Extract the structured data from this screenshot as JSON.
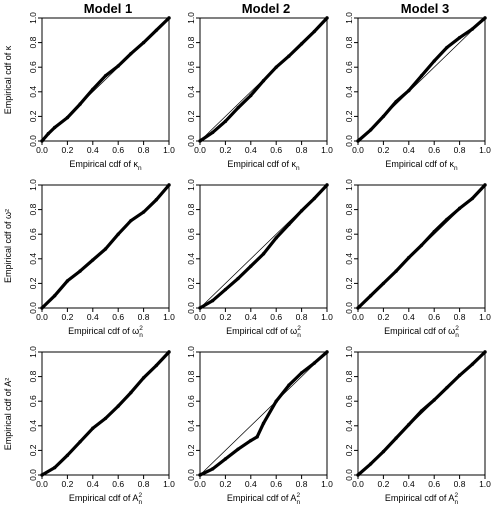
{
  "columns": [
    {
      "title": "Model 1"
    },
    {
      "title": "Model 2"
    },
    {
      "title": "Model 3"
    }
  ],
  "rows": [
    {
      "ylabel": "Empirical cdf of κ",
      "xlabel": "Empirical cdf of κ",
      "xlabel_sub": "n",
      "xlabel_sup": ""
    },
    {
      "ylabel": "Empirical cdf of ω²",
      "xlabel": "Empirical cdf of ω",
      "xlabel_sub": "n",
      "xlabel_sup": "2"
    },
    {
      "ylabel": "Empirical cdf of A²",
      "xlabel": "Empirical cdf of A",
      "xlabel_sub": "n",
      "xlabel_sup": "2"
    }
  ],
  "chart_data": [
    {
      "type": "line",
      "panel": "row1-model1",
      "xlim": [
        0,
        1
      ],
      "ylim": [
        0,
        1
      ],
      "reference_line": "y=x",
      "series": [
        {
          "x": [
            0,
            0.05,
            0.1,
            0.2,
            0.3,
            0.4,
            0.5,
            0.6,
            0.7,
            0.8,
            0.9,
            1.0
          ],
          "y": [
            0,
            0.06,
            0.11,
            0.19,
            0.3,
            0.42,
            0.53,
            0.61,
            0.71,
            0.8,
            0.9,
            1.0
          ]
        }
      ]
    },
    {
      "type": "line",
      "panel": "row1-model2",
      "xlim": [
        0,
        1
      ],
      "ylim": [
        0,
        1
      ],
      "reference_line": "y=x",
      "series": [
        {
          "x": [
            0,
            0.1,
            0.2,
            0.3,
            0.4,
            0.5,
            0.6,
            0.7,
            0.8,
            0.9,
            1.0
          ],
          "y": [
            0,
            0.07,
            0.16,
            0.27,
            0.37,
            0.49,
            0.6,
            0.69,
            0.79,
            0.89,
            1.0
          ]
        }
      ]
    },
    {
      "type": "line",
      "panel": "row1-model3",
      "xlim": [
        0,
        1
      ],
      "ylim": [
        0,
        1
      ],
      "reference_line": "y=x",
      "series": [
        {
          "x": [
            0,
            0.1,
            0.2,
            0.3,
            0.4,
            0.5,
            0.6,
            0.7,
            0.8,
            0.9,
            1.0
          ],
          "y": [
            0,
            0.09,
            0.2,
            0.32,
            0.41,
            0.53,
            0.65,
            0.76,
            0.84,
            0.91,
            1.0
          ]
        }
      ]
    },
    {
      "type": "line",
      "panel": "row2-model1",
      "xlim": [
        0,
        1
      ],
      "ylim": [
        0,
        1
      ],
      "reference_line": "none",
      "series": [
        {
          "x": [
            0,
            0.1,
            0.2,
            0.3,
            0.4,
            0.5,
            0.6,
            0.7,
            0.8,
            0.9,
            1.0
          ],
          "y": [
            0,
            0.1,
            0.22,
            0.3,
            0.39,
            0.48,
            0.6,
            0.71,
            0.78,
            0.88,
            1.0
          ]
        }
      ]
    },
    {
      "type": "line",
      "panel": "row2-model2",
      "xlim": [
        0,
        1
      ],
      "ylim": [
        0,
        1
      ],
      "reference_line": "y=x",
      "series": [
        {
          "x": [
            0,
            0.1,
            0.2,
            0.3,
            0.4,
            0.5,
            0.6,
            0.7,
            0.8,
            0.9,
            1.0
          ],
          "y": [
            0,
            0.06,
            0.15,
            0.24,
            0.34,
            0.44,
            0.57,
            0.68,
            0.79,
            0.89,
            1.0
          ]
        }
      ]
    },
    {
      "type": "line",
      "panel": "row2-model3",
      "xlim": [
        0,
        1
      ],
      "ylim": [
        0,
        1
      ],
      "reference_line": "y=x",
      "series": [
        {
          "x": [
            0,
            0.1,
            0.2,
            0.3,
            0.4,
            0.5,
            0.6,
            0.7,
            0.8,
            0.9,
            1.0
          ],
          "y": [
            0,
            0.1,
            0.2,
            0.3,
            0.41,
            0.51,
            0.62,
            0.72,
            0.81,
            0.89,
            1.0
          ]
        }
      ]
    },
    {
      "type": "line",
      "panel": "row3-model1",
      "xlim": [
        0,
        1
      ],
      "ylim": [
        0,
        1
      ],
      "reference_line": "none",
      "series": [
        {
          "x": [
            0,
            0.1,
            0.2,
            0.3,
            0.4,
            0.5,
            0.6,
            0.7,
            0.8,
            0.9,
            1.0
          ],
          "y": [
            0,
            0.06,
            0.16,
            0.27,
            0.38,
            0.46,
            0.56,
            0.67,
            0.79,
            0.89,
            1.0
          ]
        }
      ]
    },
    {
      "type": "line",
      "panel": "row3-model2",
      "xlim": [
        0,
        1
      ],
      "ylim": [
        0,
        1
      ],
      "reference_line": "y=x",
      "series": [
        {
          "x": [
            0,
            0.1,
            0.2,
            0.3,
            0.4,
            0.45,
            0.5,
            0.6,
            0.7,
            0.8,
            0.9,
            1.0
          ],
          "y": [
            0,
            0.05,
            0.13,
            0.21,
            0.28,
            0.31,
            0.42,
            0.6,
            0.73,
            0.83,
            0.91,
            1.0
          ]
        }
      ]
    },
    {
      "type": "line",
      "panel": "row3-model3",
      "xlim": [
        0,
        1
      ],
      "ylim": [
        0,
        1
      ],
      "reference_line": "y=x",
      "series": [
        {
          "x": [
            0,
            0.1,
            0.2,
            0.3,
            0.4,
            0.5,
            0.6,
            0.7,
            0.8,
            0.9,
            1.0
          ],
          "y": [
            0,
            0.09,
            0.19,
            0.3,
            0.41,
            0.52,
            0.61,
            0.71,
            0.81,
            0.9,
            1.0
          ]
        }
      ]
    }
  ],
  "ticks": [
    "0.0",
    "0.2",
    "0.4",
    "0.6",
    "0.8",
    "1.0"
  ]
}
